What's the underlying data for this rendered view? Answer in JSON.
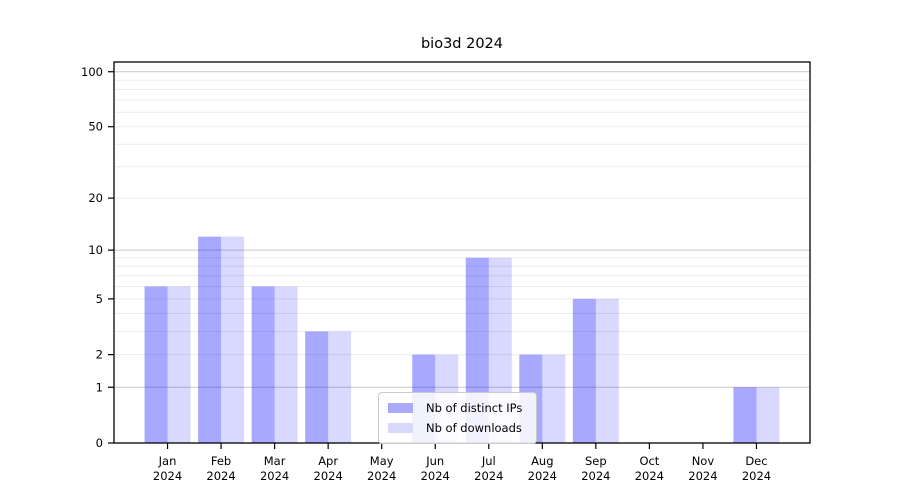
{
  "title": "bio3d 2024",
  "chart_data": {
    "type": "bar",
    "title": "bio3d 2024",
    "categories": [
      "Jan 2024",
      "Feb 2024",
      "Mar 2024",
      "Apr 2024",
      "May 2024",
      "Jun 2024",
      "Jul 2024",
      "Aug 2024",
      "Sep 2024",
      "Oct 2024",
      "Nov 2024",
      "Dec 2024"
    ],
    "series": [
      {
        "name": "Nb of distinct IPs",
        "color": "rgba(0,0,255,0.34)",
        "legend_color": "#a9a9fa",
        "values": [
          6,
          12,
          6,
          3,
          0,
          2,
          9,
          2,
          5,
          0,
          0,
          1
        ]
      },
      {
        "name": "Nb of downloads",
        "color": "rgba(0,0,255,0.15)",
        "legend_color": "#d8d8fb",
        "values": [
          6,
          12,
          6,
          3,
          0,
          2,
          9,
          2,
          5,
          0,
          0,
          1
        ]
      }
    ],
    "xlabel": "",
    "ylabel": "",
    "yscale": "log1p",
    "ylim": [
      0,
      113
    ],
    "yticks": [
      0,
      1,
      2,
      5,
      10,
      20,
      50,
      100
    ],
    "yticks_minor": [
      3,
      4,
      6,
      7,
      8,
      9,
      30,
      40,
      60,
      70,
      80,
      90
    ],
    "grid": true,
    "legend_position": "inside-bottom-center"
  },
  "colors": {
    "bar_dark": "rgba(0,0,255,0.34)",
    "bar_light": "rgba(0,0,255,0.15)",
    "grid_decade": "#c9c9c9",
    "grid_minor": "#ececec",
    "spine": "#000000",
    "text": "#000000",
    "legend_border": "#cbcbcb"
  }
}
